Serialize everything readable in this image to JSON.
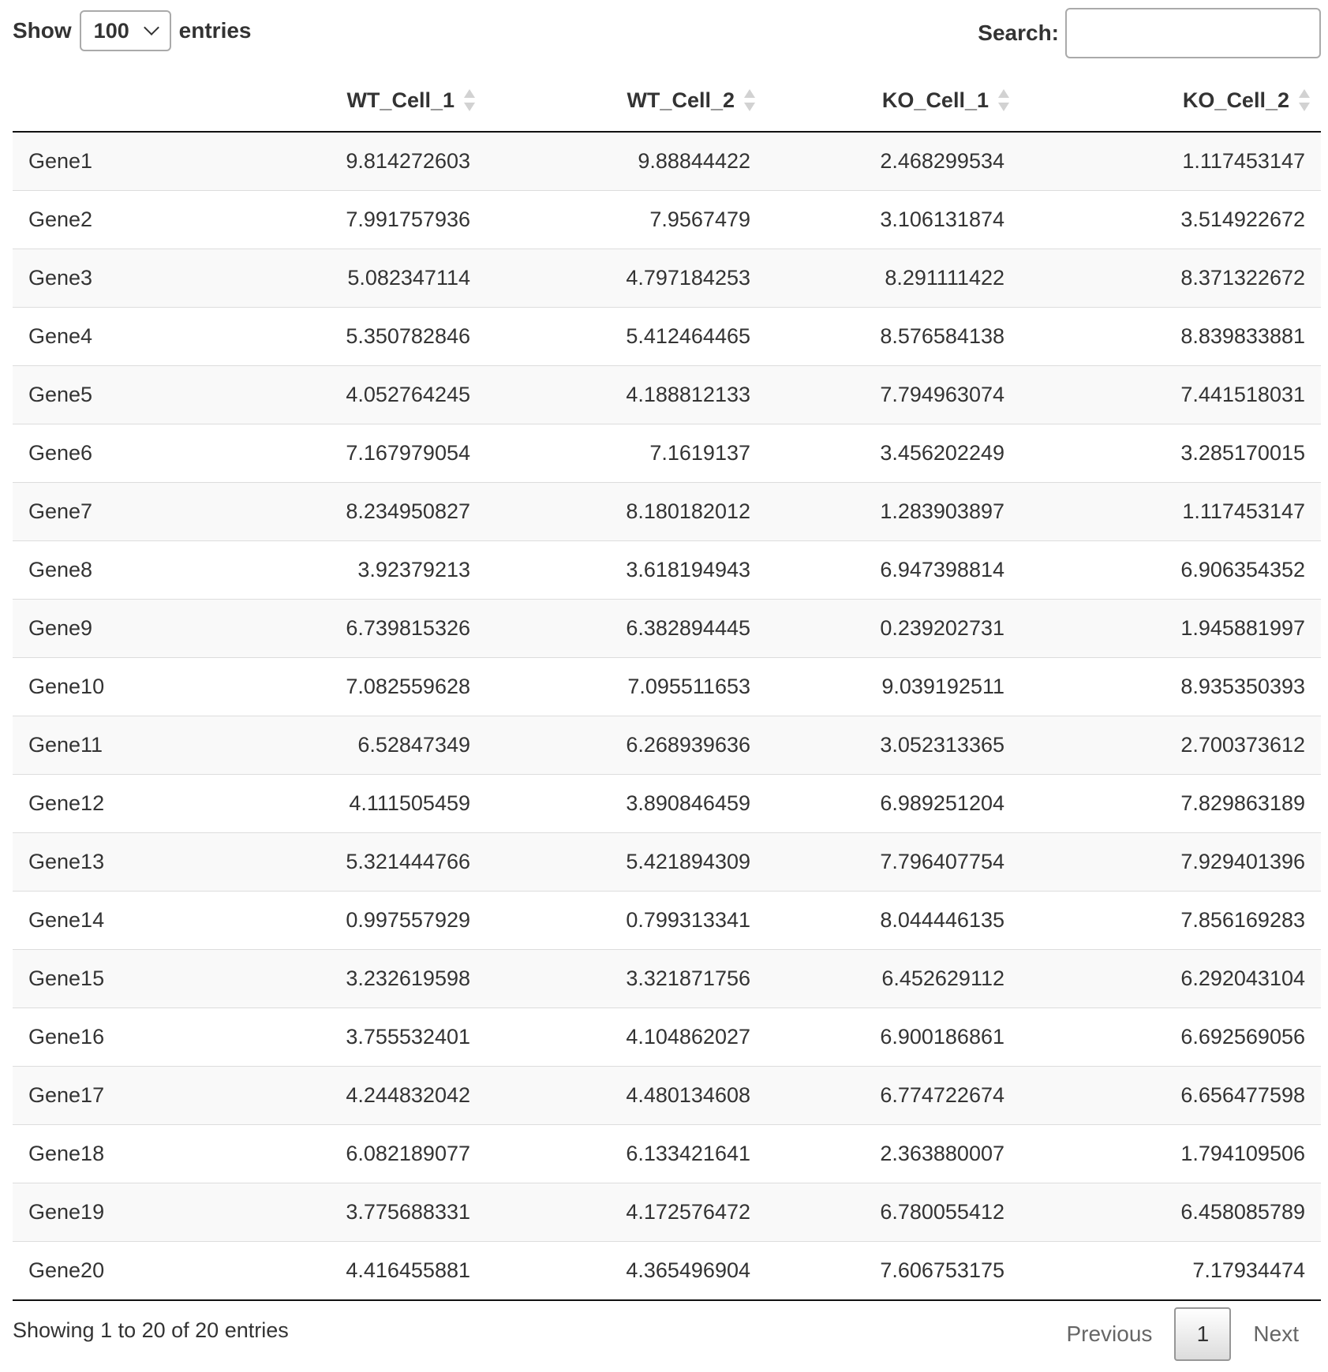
{
  "length_menu": {
    "show_label": "Show",
    "selected": "100",
    "entries_label": "entries"
  },
  "search": {
    "label": "Search:",
    "value": ""
  },
  "table": {
    "columns": [
      "",
      "WT_Cell_1",
      "WT_Cell_2",
      "KO_Cell_1",
      "KO_Cell_2"
    ],
    "rows": [
      [
        "Gene1",
        "9.814272603",
        "9.88844422",
        "2.468299534",
        "1.117453147"
      ],
      [
        "Gene2",
        "7.991757936",
        "7.9567479",
        "3.106131874",
        "3.514922672"
      ],
      [
        "Gene3",
        "5.082347114",
        "4.797184253",
        "8.291111422",
        "8.371322672"
      ],
      [
        "Gene4",
        "5.350782846",
        "5.412464465",
        "8.576584138",
        "8.839833881"
      ],
      [
        "Gene5",
        "4.052764245",
        "4.188812133",
        "7.794963074",
        "7.441518031"
      ],
      [
        "Gene6",
        "7.167979054",
        "7.1619137",
        "3.456202249",
        "3.285170015"
      ],
      [
        "Gene7",
        "8.234950827",
        "8.180182012",
        "1.283903897",
        "1.117453147"
      ],
      [
        "Gene8",
        "3.92379213",
        "3.618194943",
        "6.947398814",
        "6.906354352"
      ],
      [
        "Gene9",
        "6.739815326",
        "6.382894445",
        "0.239202731",
        "1.945881997"
      ],
      [
        "Gene10",
        "7.082559628",
        "7.095511653",
        "9.039192511",
        "8.935350393"
      ],
      [
        "Gene11",
        "6.52847349",
        "6.268939636",
        "3.052313365",
        "2.700373612"
      ],
      [
        "Gene12",
        "4.111505459",
        "3.890846459",
        "6.989251204",
        "7.829863189"
      ],
      [
        "Gene13",
        "5.321444766",
        "5.421894309",
        "7.796407754",
        "7.929401396"
      ],
      [
        "Gene14",
        "0.997557929",
        "0.799313341",
        "8.044446135",
        "7.856169283"
      ],
      [
        "Gene15",
        "3.232619598",
        "3.321871756",
        "6.452629112",
        "6.292043104"
      ],
      [
        "Gene16",
        "3.755532401",
        "4.104862027",
        "6.900186861",
        "6.692569056"
      ],
      [
        "Gene17",
        "4.244832042",
        "4.480134608",
        "6.774722674",
        "6.656477598"
      ],
      [
        "Gene18",
        "6.082189077",
        "6.133421641",
        "2.363880007",
        "1.794109506"
      ],
      [
        "Gene19",
        "3.775688331",
        "4.172576472",
        "6.780055412",
        "6.458085789"
      ],
      [
        "Gene20",
        "4.416455881",
        "4.365496904",
        "7.606753175",
        "7.17934474"
      ]
    ]
  },
  "footer": {
    "info": "Showing 1 to 20 of 20 entries",
    "previous_label": "Previous",
    "current_page": "1",
    "next_label": "Next"
  }
}
